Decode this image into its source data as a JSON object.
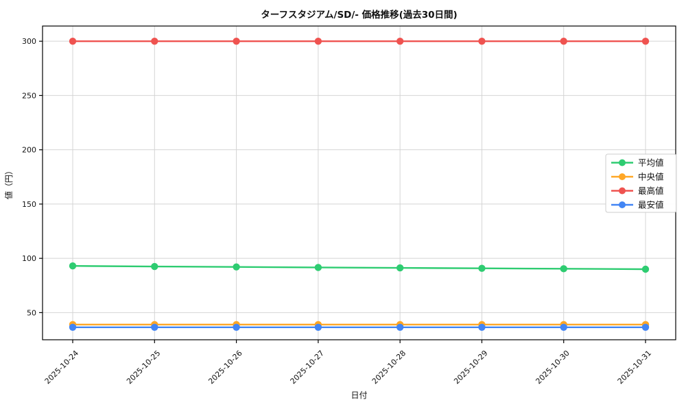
{
  "figure": {
    "background": "#ffffff",
    "plot_background": "#ffffff",
    "spine_color": "#000000",
    "grid_color": "#d4d4d4",
    "text_color": "#111111"
  },
  "chart_data": {
    "type": "line",
    "title": "ターフスタジアム/SD/- 価格推移(過去30日間)",
    "xlabel": "日付",
    "ylabel": "値（円）",
    "x": [
      "2025-10-24",
      "2025-10-25",
      "2025-10-26",
      "2025-10-27",
      "2025-10-28",
      "2025-10-29",
      "2025-10-30",
      "2025-10-31"
    ],
    "x_tick_rotation": 45,
    "series": [
      {
        "key": "avg",
        "name": "平均値",
        "color": "#2ecc71",
        "values": [
          93,
          92.5,
          92.1,
          91.6,
          91.2,
          90.8,
          90.4,
          90
        ]
      },
      {
        "key": "median",
        "name": "中央値",
        "color": "#ffa726",
        "values": [
          39,
          39,
          39,
          39,
          39,
          39,
          39,
          39
        ]
      },
      {
        "key": "max",
        "name": "最高値",
        "color": "#ef5350",
        "values": [
          300,
          300,
          300,
          300,
          300,
          300,
          300,
          300
        ]
      },
      {
        "key": "min",
        "name": "最安値",
        "color": "#4285f4",
        "values": [
          36.5,
          36.5,
          36.5,
          36.5,
          36.5,
          36.5,
          36.5,
          36.5
        ]
      }
    ],
    "yticks": [
      50,
      100,
      150,
      200,
      250,
      300
    ],
    "ylim": [
      25,
      314
    ],
    "grid": true,
    "legend_position": "center right"
  }
}
